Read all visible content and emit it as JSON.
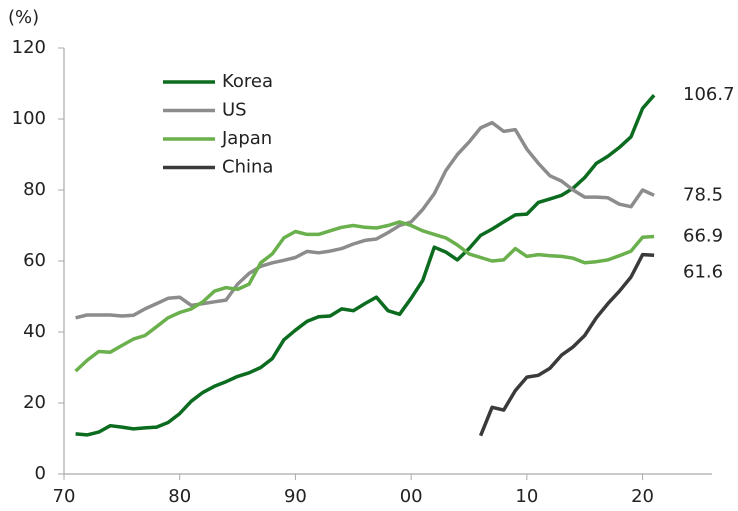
{
  "chart_data": {
    "type": "line",
    "y_unit": "(%)",
    "x": [
      1971,
      1972,
      1973,
      1974,
      1975,
      1976,
      1977,
      1978,
      1979,
      1980,
      1981,
      1982,
      1983,
      1984,
      1985,
      1986,
      1987,
      1988,
      1989,
      1990,
      1991,
      1992,
      1993,
      1994,
      1995,
      1996,
      1997,
      1998,
      1999,
      2000,
      2001,
      2002,
      2003,
      2004,
      2005,
      2006,
      2007,
      2008,
      2009,
      2010,
      2011,
      2012,
      2013,
      2014,
      2015,
      2016,
      2017,
      2018,
      2019,
      2020,
      2021
    ],
    "series": [
      {
        "name": "Korea",
        "color": "#0b6b1f",
        "values": [
          11.3,
          11,
          11.8,
          13.6,
          13.2,
          12.7,
          13,
          13.2,
          14.5,
          17,
          20.5,
          23,
          24.7,
          26,
          27.5,
          28.5,
          30,
          32.5,
          37.8,
          40.5,
          43,
          44.3,
          44.5,
          46.5,
          46,
          48,
          49.8,
          46,
          45,
          49.5,
          54.5,
          63.9,
          62.5,
          60.3,
          63.5,
          67.2,
          69,
          71,
          73,
          73.2,
          76.5,
          77.5,
          78.5,
          80.5,
          83.5,
          87.5,
          89.5,
          92,
          95,
          103,
          106.7
        ]
      },
      {
        "name": "US",
        "color": "#8c8c8c",
        "values": [
          44,
          44.8,
          44.8,
          44.8,
          44.5,
          44.7,
          46.5,
          48,
          49.5,
          49.8,
          47.5,
          48,
          48.5,
          49,
          53.5,
          56.5,
          58.5,
          59.5,
          60.2,
          61,
          62.7,
          62.3,
          62.8,
          63.5,
          64.8,
          65.8,
          66.2,
          68,
          70,
          71,
          74.5,
          79,
          85.5,
          90,
          93.5,
          97.5,
          99,
          96.5,
          97,
          91.5,
          87.5,
          84,
          82.5,
          80,
          78,
          78,
          77.8,
          76,
          75.3,
          80,
          78.5
        ]
      },
      {
        "name": "Japan",
        "color": "#6ab04c",
        "values": [
          29,
          32,
          34.5,
          34.3,
          36.2,
          38,
          39,
          41.5,
          44,
          45.5,
          46.5,
          48.5,
          51.5,
          52.5,
          52,
          53.5,
          59.5,
          62,
          66.5,
          68.3,
          67.5,
          67.5,
          68.5,
          69.5,
          70,
          69.5,
          69.3,
          70,
          71,
          70,
          68.5,
          67.5,
          66.5,
          64.5,
          62,
          61,
          60,
          60.3,
          63.5,
          61.3,
          61.8,
          61.5,
          61.3,
          60.8,
          59.5,
          59.8,
          60.3,
          61.5,
          62.8,
          66.7,
          66.9
        ]
      },
      {
        "name": "China",
        "color": "#3a3a3a",
        "values": [
          null,
          null,
          null,
          null,
          null,
          null,
          null,
          null,
          null,
          null,
          null,
          null,
          null,
          null,
          null,
          null,
          null,
          null,
          null,
          null,
          null,
          null,
          null,
          null,
          null,
          null,
          null,
          null,
          null,
          null,
          null,
          null,
          null,
          null,
          null,
          10.8,
          18.8,
          18,
          23.5,
          27.3,
          27.8,
          29.8,
          33.5,
          35.8,
          39,
          44,
          48,
          51.5,
          55.5,
          61.8,
          61.6
        ]
      }
    ],
    "xlim": [
      1970,
      2026
    ],
    "xticks": [
      {
        "value": 1970,
        "label": "70"
      },
      {
        "value": 1980,
        "label": "80"
      },
      {
        "value": 1990,
        "label": "90"
      },
      {
        "value": 2000,
        "label": "00"
      },
      {
        "value": 2010,
        "label": "10"
      },
      {
        "value": 2020,
        "label": "20"
      }
    ],
    "ylim": [
      0,
      120
    ],
    "yticks": [
      0,
      20,
      40,
      60,
      80,
      100,
      120
    ],
    "legend": "upper-left"
  }
}
